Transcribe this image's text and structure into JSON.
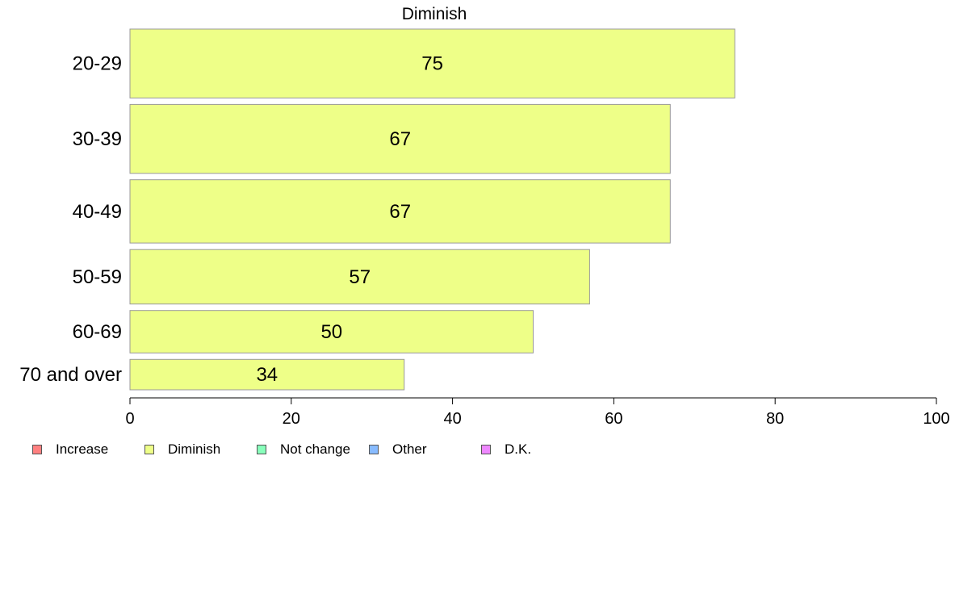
{
  "chart_data": {
    "type": "bar",
    "orientation": "horizontal",
    "title": "Diminish",
    "categories": [
      "20-29",
      "30-39",
      "40-49",
      "50-59",
      "60-69",
      "70 and over"
    ],
    "values": [
      75,
      67,
      67,
      57,
      50,
      34
    ],
    "data_labels": [
      "75",
      "67",
      "67",
      "57",
      "50",
      "34"
    ],
    "bar_weights": [
      86,
      86,
      79,
      68,
      53,
      38
    ],
    "xlim": [
      0,
      100
    ],
    "xticks": [
      0,
      20,
      40,
      60,
      80,
      100
    ],
    "xtick_labels": [
      "0",
      "20",
      "40",
      "60",
      "80",
      "100"
    ],
    "grid": false,
    "bar_color": "#EEFF88",
    "bar_border_color": "#999999",
    "legend": {
      "placement": "bottom-left",
      "entries": [
        {
          "label": "Increase",
          "color": "#FF8080"
        },
        {
          "label": "Diminish",
          "color": "#EEFF88"
        },
        {
          "label": "Not change",
          "color": "#88FFBB"
        },
        {
          "label": "Other",
          "color": "#88BBFF"
        },
        {
          "label": "D.K.",
          "color": "#EE88FF"
        }
      ]
    }
  }
}
